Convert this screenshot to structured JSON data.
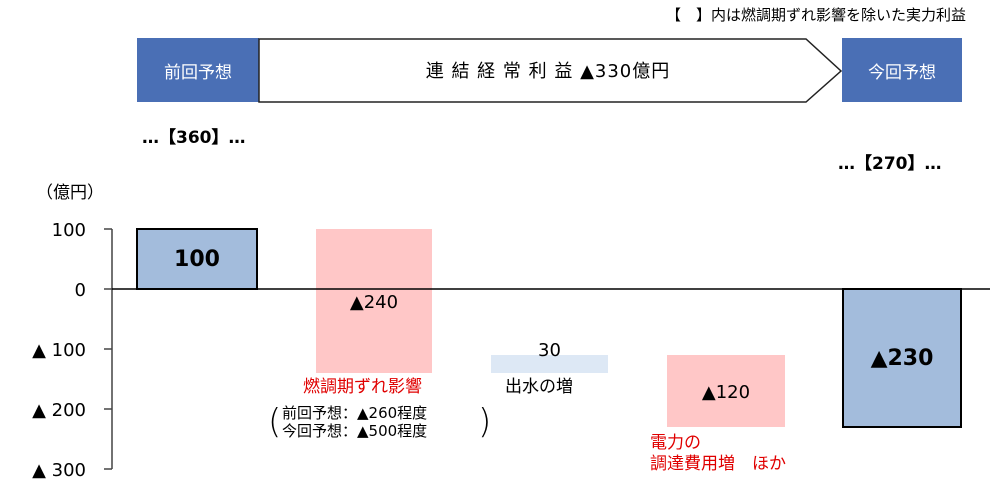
{
  "note": "【　】内は燃調期ずれ影響を除いた実力利益",
  "header": {
    "prev_label": "前回予想",
    "arrow_label": "連 結 経 常 利 益 ▲330億円",
    "next_label": "今回予想"
  },
  "prev_bracket": "…【360】…",
  "next_bracket": "…【270】…",
  "unit": "（億円）",
  "captions": {
    "fuel": "燃調期ずれ影響",
    "fuel_details": [
      "前回予想：▲260程度",
      "今回予想：▲500程度"
    ],
    "fuel_paren_left": "(",
    "fuel_paren_right": ")",
    "water": "出水の増",
    "power_lines": [
      "電力の",
      "調達費用増　ほか"
    ]
  },
  "colors": {
    "header_fill": "#4a6fb5",
    "total_bar": "#a3bcdc",
    "decrease_bar": "#ffc7c7",
    "increase_bar": "#dde8f5",
    "red_text": "#e00000"
  },
  "chart_data": {
    "type": "bar",
    "subtype": "waterfall",
    "ylabel": "（億円）",
    "ylim": [
      -300,
      100
    ],
    "yticks": [
      100,
      0,
      -100,
      -200,
      -300
    ],
    "ytick_labels": [
      "100",
      "0",
      "▲ 100",
      "▲ 200",
      "▲ 300"
    ],
    "grid": false,
    "bars": [
      {
        "kind": "total",
        "start": 0,
        "end": 100,
        "label": "100"
      },
      {
        "kind": "decrease",
        "start": 100,
        "end": -140,
        "label": "▲240"
      },
      {
        "kind": "increase",
        "start": -140,
        "end": -110,
        "label": "30"
      },
      {
        "kind": "decrease",
        "start": -110,
        "end": -230,
        "label": "▲120"
      },
      {
        "kind": "total",
        "start": 0,
        "end": -230,
        "label": "▲230"
      }
    ]
  }
}
